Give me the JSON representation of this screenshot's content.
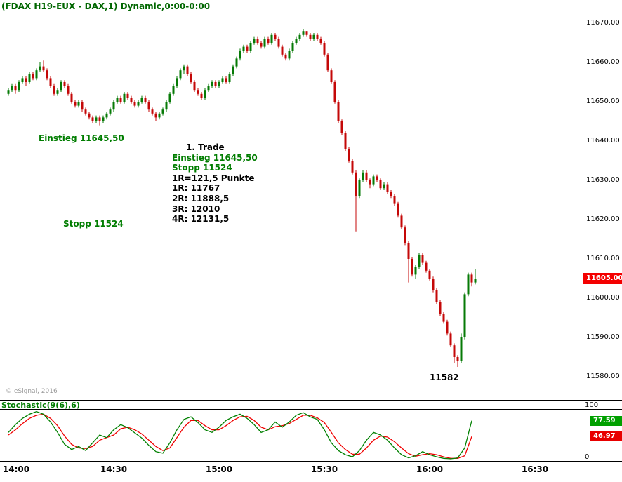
{
  "title": "(FDAX H19-EUX - DAX,1) Dynamic,0:00-0:00",
  "watermark": "© eSignal, 2016",
  "colors": {
    "up": "#067a06",
    "down": "#c40808",
    "annotation_green": "#007d00",
    "last_price_bg": "#f40000",
    "stoch_k_badge_bg": "#00a000",
    "stoch_d_badge_bg": "#e80000"
  },
  "annotations": {
    "einstieg": "Einstieg 11645,50",
    "stopp": "Stopp 11524",
    "low_label": "11582"
  },
  "trade_block": {
    "heading": "1. Trade",
    "einstieg": "Einstieg 11645,50",
    "stopp": "Stopp 11524",
    "risk": "1R=121,5 Punkte",
    "r1": "1R: 11767",
    "r2": "2R: 11888,5",
    "r3": "3R: 12010",
    "r4": "4R: 12131,5"
  },
  "price_axis": {
    "labels": [
      "11670.00",
      "11660.00",
      "11650.00",
      "11640.00",
      "11630.00",
      "11620.00",
      "11610.00",
      "11600.00",
      "11590.00",
      "11580.00"
    ],
    "last_price_label": "11605.00"
  },
  "time_axis": {
    "labels": [
      "14:00",
      "14:30",
      "15:00",
      "15:30",
      "16:00",
      "16:30"
    ]
  },
  "stoch": {
    "label": "Stochastic(9(6),6)",
    "scale_top": "100",
    "scale_bottom": "0",
    "k_value_label": "77.59",
    "d_value_label": "46.97"
  },
  "chart_data": [
    {
      "type": "candlestick",
      "title": "(FDAX H19-EUX - DAX,1) Dynamic,0:00-0:00",
      "interval_minutes": 1,
      "start_time": "14:00",
      "x_tick_labels": [
        "14:00",
        "14:30",
        "15:00",
        "15:30",
        "16:00",
        "16:30"
      ],
      "ylim": [
        11575,
        11672.5
      ],
      "y_tick_values": [
        11670,
        11660,
        11650,
        11640,
        11630,
        11620,
        11610,
        11600,
        11590,
        11580
      ],
      "last_price": 11605.0,
      "session_low": 11582,
      "entry_price": 11645.5,
      "stop_price": 11524,
      "candles_ohlc": [
        [
          11652,
          11653.5,
          11651.5,
          11653
        ],
        [
          11653,
          11654.5,
          11652.5,
          11654
        ],
        [
          11654,
          11654.5,
          11652,
          11653
        ],
        [
          11653,
          11655.5,
          11652.5,
          11655
        ],
        [
          11655,
          11656.5,
          11654.5,
          11656
        ],
        [
          11656,
          11656.5,
          11654,
          11655
        ],
        [
          11655,
          11657.5,
          11654.5,
          11657
        ],
        [
          11657,
          11657.5,
          11655.5,
          11656
        ],
        [
          11656,
          11658.5,
          11655.5,
          11658
        ],
        [
          11658,
          11660,
          11657.5,
          11659
        ],
        [
          11659,
          11660.5,
          11657.5,
          11658
        ],
        [
          11658,
          11658.5,
          11655.5,
          11656
        ],
        [
          11656,
          11656.5,
          11653.5,
          11654
        ],
        [
          11654,
          11654.5,
          11651.5,
          11652
        ],
        [
          11652,
          11653.5,
          11651.5,
          11653
        ],
        [
          11653,
          11655.5,
          11652.5,
          11655
        ],
        [
          11655,
          11655.5,
          11653.5,
          11654
        ],
        [
          11654,
          11654.5,
          11651.5,
          11652
        ],
        [
          11652,
          11652.5,
          11649.5,
          11650
        ],
        [
          11650,
          11650.5,
          11648.5,
          11649
        ],
        [
          11649,
          11650.5,
          11648.5,
          11650
        ],
        [
          11650,
          11650.5,
          11647.5,
          11648
        ],
        [
          11648,
          11648.5,
          11646.5,
          11647
        ],
        [
          11647,
          11647.5,
          11645.5,
          11646
        ],
        [
          11646,
          11646.5,
          11644.5,
          11645
        ],
        [
          11645,
          11646.5,
          11644.5,
          11646
        ],
        [
          11646,
          11646.5,
          11644,
          11645
        ],
        [
          11645,
          11646.5,
          11644.5,
          11646
        ],
        [
          11646,
          11647.5,
          11645.5,
          11647
        ],
        [
          11647,
          11648.5,
          11646.5,
          11648
        ],
        [
          11648,
          11650.5,
          11647.5,
          11650
        ],
        [
          11650,
          11651.5,
          11649.5,
          11651
        ],
        [
          11651,
          11651.5,
          11649.5,
          11650
        ],
        [
          11650,
          11652.5,
          11649.5,
          11652
        ],
        [
          11652,
          11652.5,
          11650.5,
          11651
        ],
        [
          11651,
          11651.5,
          11649.5,
          11650
        ],
        [
          11650,
          11650.5,
          11648.5,
          11649
        ],
        [
          11649,
          11650.5,
          11648.5,
          11650
        ],
        [
          11650,
          11651.5,
          11649.5,
          11651
        ],
        [
          11651,
          11651.5,
          11649.5,
          11650
        ],
        [
          11650,
          11650.5,
          11647.5,
          11648
        ],
        [
          11648,
          11648.5,
          11646.5,
          11647
        ],
        [
          11647,
          11647.5,
          11645,
          11646
        ],
        [
          11646,
          11647.5,
          11645.5,
          11647
        ],
        [
          11647,
          11648.5,
          11646.5,
          11648
        ],
        [
          11648,
          11650.5,
          11647.5,
          11650
        ],
        [
          11650,
          11652.5,
          11649.5,
          11652
        ],
        [
          11652,
          11654.5,
          11651.5,
          11654
        ],
        [
          11654,
          11656.5,
          11653.5,
          11656
        ],
        [
          11656,
          11658.5,
          11655.5,
          11658
        ],
        [
          11658,
          11659.5,
          11657,
          11659
        ],
        [
          11659,
          11659.5,
          11656.5,
          11657
        ],
        [
          11657,
          11657.5,
          11654.5,
          11655
        ],
        [
          11655,
          11655.5,
          11652.5,
          11653
        ],
        [
          11653,
          11653.5,
          11651.5,
          11652
        ],
        [
          11652,
          11652.5,
          11650.5,
          11651
        ],
        [
          11651,
          11653.5,
          11650.5,
          11653
        ],
        [
          11653,
          11654.5,
          11652.5,
          11654
        ],
        [
          11654,
          11655.5,
          11653.5,
          11655
        ],
        [
          11655,
          11655.5,
          11653.5,
          11654
        ],
        [
          11654,
          11655.5,
          11653.5,
          11655
        ],
        [
          11655,
          11656.5,
          11654.5,
          11656
        ],
        [
          11656,
          11656.5,
          11654.5,
          11655
        ],
        [
          11655,
          11657.5,
          11654.5,
          11657
        ],
        [
          11657,
          11659.5,
          11656.5,
          11659
        ],
        [
          11659,
          11661.5,
          11658.5,
          11661
        ],
        [
          11661,
          11663.5,
          11660.5,
          11663
        ],
        [
          11663,
          11664.5,
          11662.5,
          11664
        ],
        [
          11664,
          11664.5,
          11662.5,
          11663
        ],
        [
          11663,
          11665.5,
          11662.5,
          11665
        ],
        [
          11665,
          11666.5,
          11664.5,
          11666
        ],
        [
          11666,
          11666.5,
          11664.5,
          11665
        ],
        [
          11665,
          11665.5,
          11663.5,
          11664
        ],
        [
          11664,
          11666.5,
          11663.5,
          11666
        ],
        [
          11666,
          11666.5,
          11664.5,
          11665
        ],
        [
          11665,
          11667.5,
          11664.5,
          11667
        ],
        [
          11667,
          11667.5,
          11665.5,
          11666
        ],
        [
          11666,
          11666.5,
          11663.5,
          11664
        ],
        [
          11664,
          11664.5,
          11661.5,
          11662
        ],
        [
          11662,
          11662.5,
          11660.5,
          11661
        ],
        [
          11661,
          11663.5,
          11660.5,
          11663
        ],
        [
          11663,
          11665.5,
          11662.5,
          11665
        ],
        [
          11665,
          11666.5,
          11664.5,
          11666
        ],
        [
          11666,
          11667.5,
          11665.5,
          11667
        ],
        [
          11667,
          11668.5,
          11666.5,
          11668
        ],
        [
          11668,
          11668,
          11666.5,
          11667
        ],
        [
          11667,
          11667.5,
          11665.5,
          11666
        ],
        [
          11666,
          11667.5,
          11665.5,
          11667
        ],
        [
          11667,
          11667.5,
          11665.5,
          11666
        ],
        [
          11666,
          11666.5,
          11664.5,
          11665
        ],
        [
          11665,
          11665.5,
          11661.5,
          11662
        ],
        [
          11662,
          11662.5,
          11657.5,
          11658
        ],
        [
          11658,
          11658.5,
          11654.5,
          11655
        ],
        [
          11655,
          11655.5,
          11649.5,
          11650
        ],
        [
          11650,
          11650.5,
          11644.5,
          11645
        ],
        [
          11645,
          11645.5,
          11641.5,
          11642
        ],
        [
          11642,
          11642.5,
          11637.5,
          11638
        ],
        [
          11638,
          11638.5,
          11634.5,
          11635
        ],
        [
          11635,
          11635.5,
          11631.5,
          11632
        ],
        [
          11632,
          11632.5,
          11617,
          11626
        ],
        [
          11626,
          11630.5,
          11625.5,
          11630
        ],
        [
          11630,
          11632.5,
          11629.5,
          11632
        ],
        [
          11632,
          11632.5,
          11629.5,
          11630
        ],
        [
          11630,
          11630.5,
          11628,
          11629
        ],
        [
          11629,
          11631.5,
          11628.5,
          11631
        ],
        [
          11631,
          11631.5,
          11629.5,
          11630
        ],
        [
          11630,
          11630.5,
          11627.5,
          11628
        ],
        [
          11628,
          11629.5,
          11627.5,
          11629
        ],
        [
          11629,
          11629.5,
          11626.5,
          11627
        ],
        [
          11627,
          11627.5,
          11625.5,
          11626
        ],
        [
          11626,
          11626.5,
          11623.5,
          11624
        ],
        [
          11624,
          11624.5,
          11620.5,
          11621
        ],
        [
          11621,
          11621.5,
          11617.5,
          11618
        ],
        [
          11618,
          11618.5,
          11613.5,
          11614
        ],
        [
          11614,
          11614.5,
          11604,
          11610
        ],
        [
          11610,
          11610.5,
          11605.5,
          11606
        ],
        [
          11606,
          11608.5,
          11605,
          11608
        ],
        [
          11608,
          11611.5,
          11607.5,
          11611
        ],
        [
          11611,
          11611.5,
          11608.5,
          11609
        ],
        [
          11609,
          11609.5,
          11606.5,
          11607
        ],
        [
          11607,
          11607.5,
          11604.5,
          11605
        ],
        [
          11605,
          11605.5,
          11601.5,
          11602
        ],
        [
          11602,
          11602.5,
          11598.5,
          11599
        ],
        [
          11599,
          11599.5,
          11595.5,
          11596
        ],
        [
          11596,
          11596.5,
          11593.5,
          11594
        ],
        [
          11594,
          11594.5,
          11590.5,
          11591
        ],
        [
          11591,
          11591.5,
          11587.5,
          11588
        ],
        [
          11588,
          11588.5,
          11583.5,
          11585
        ],
        [
          11585,
          11585.5,
          11582.5,
          11584
        ],
        [
          11584,
          11591,
          11583.5,
          11590
        ],
        [
          11590,
          11601.5,
          11589.5,
          11601
        ],
        [
          11601,
          11606.5,
          11600.5,
          11606
        ],
        [
          11606,
          11606.5,
          11603,
          11604
        ],
        [
          11604,
          11607.5,
          11603.5,
          11605
        ]
      ]
    },
    {
      "type": "line",
      "title": "Stochastic(9(6),6)",
      "ylim": [
        0,
        100
      ],
      "x_step_minutes": 2,
      "legend_position": "top-left",
      "series": [
        {
          "name": "%K",
          "color": "#008000",
          "current": 77.59,
          "values": [
            55,
            70,
            82,
            90,
            95,
            90,
            75,
            55,
            32,
            22,
            28,
            20,
            35,
            50,
            45,
            60,
            70,
            64,
            54,
            44,
            30,
            18,
            15,
            35,
            60,
            80,
            85,
            74,
            60,
            55,
            65,
            78,
            85,
            90,
            82,
            70,
            55,
            60,
            75,
            65,
            75,
            88,
            93,
            85,
            80,
            60,
            35,
            20,
            12,
            8,
            20,
            40,
            55,
            50,
            40,
            25,
            12,
            6,
            10,
            18,
            12,
            8,
            5,
            4,
            6,
            25,
            77.59
          ]
        },
        {
          "name": "%D",
          "color": "#f00000",
          "current": 46.97,
          "values": [
            50,
            60,
            72,
            82,
            88,
            90,
            82,
            68,
            48,
            32,
            25,
            24,
            28,
            40,
            45,
            50,
            62,
            65,
            60,
            52,
            40,
            28,
            20,
            25,
            45,
            65,
            78,
            78,
            68,
            60,
            60,
            68,
            78,
            85,
            86,
            78,
            65,
            60,
            66,
            68,
            72,
            80,
            88,
            88,
            83,
            74,
            55,
            35,
            22,
            13,
            13,
            25,
            40,
            48,
            46,
            37,
            25,
            14,
            9,
            12,
            14,
            12,
            8,
            5,
            5,
            10,
            46.97
          ]
        }
      ]
    }
  ]
}
